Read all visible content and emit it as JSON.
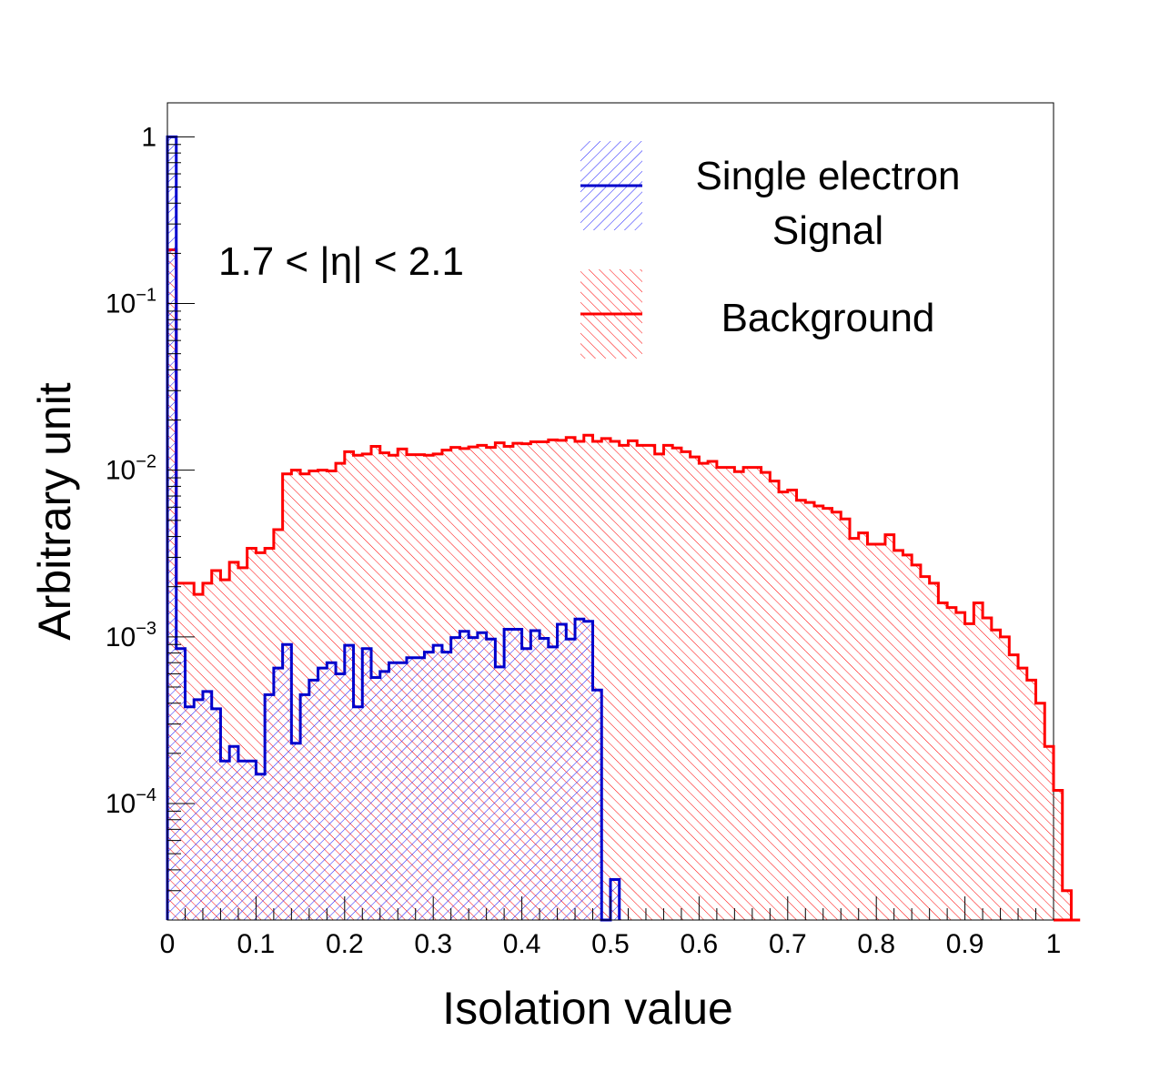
{
  "chart_data": {
    "type": "histogram",
    "xlabel": "Isolation value",
    "ylabel": "Arbitrary unit",
    "annotation": "1.7 < |η| < 2.1",
    "xlim": [
      0,
      1
    ],
    "ylim": [
      2e-05,
      1.6
    ],
    "yscale": "log",
    "bin_width": 0.01,
    "x_ticks": [
      "0",
      "0.1",
      "0.2",
      "0.3",
      "0.4",
      "0.5",
      "0.6",
      "0.7",
      "0.8",
      "0.9",
      "1"
    ],
    "y_ticks": [
      {
        "value": 1,
        "base": "1",
        "exp": ""
      },
      {
        "value": 0.1,
        "base": "10",
        "exp": "−1"
      },
      {
        "value": 0.01,
        "base": "10",
        "exp": "−2"
      },
      {
        "value": 0.001,
        "base": "10",
        "exp": "−3"
      },
      {
        "value": 0.0001,
        "base": "10",
        "exp": "−4"
      }
    ],
    "legend_position": "top-right",
    "series": [
      {
        "name": "Background",
        "legend_label": "Background",
        "color": "#ff0000",
        "hatch": "diagonal-down",
        "values": [
          0.21,
          0.0021,
          0.0021,
          0.0018,
          0.0021,
          0.0025,
          0.0022,
          0.0028,
          0.0026,
          0.0034,
          0.0032,
          0.0034,
          0.0044,
          0.0095,
          0.01,
          0.0095,
          0.0099,
          0.01,
          0.0099,
          0.011,
          0.0129,
          0.0123,
          0.0125,
          0.0139,
          0.0127,
          0.0123,
          0.0134,
          0.0124,
          0.0124,
          0.0123,
          0.0125,
          0.0132,
          0.0137,
          0.0135,
          0.0138,
          0.0141,
          0.0137,
          0.0146,
          0.0139,
          0.0145,
          0.0144,
          0.0148,
          0.0148,
          0.0152,
          0.0151,
          0.0157,
          0.0149,
          0.0162,
          0.0149,
          0.0155,
          0.0149,
          0.0141,
          0.015,
          0.0141,
          0.0141,
          0.0125,
          0.0141,
          0.0136,
          0.0129,
          0.012,
          0.011,
          0.0113,
          0.0104,
          0.0104,
          0.0098,
          0.0104,
          0.0104,
          0.0097,
          0.0086,
          0.0074,
          0.0076,
          0.0066,
          0.0064,
          0.0061,
          0.0059,
          0.0056,
          0.0051,
          0.0039,
          0.0042,
          0.0036,
          0.0036,
          0.0041,
          0.0033,
          0.0031,
          0.0027,
          0.0023,
          0.0021,
          0.0016,
          0.0015,
          0.0014,
          0.0012,
          0.0016,
          0.0013,
          0.0011,
          0.001,
          0.00078,
          0.00065,
          0.00055,
          0.0004,
          0.00022,
          0.00012,
          3e-05,
          2e-05
        ]
      },
      {
        "name": "Single electron Signal",
        "legend_label": "Single electron Signal",
        "color": "#0000cc",
        "hatch": "diagonal-up",
        "values": [
          1.0,
          0.00085,
          0.00038,
          0.00042,
          0.00047,
          0.00037,
          0.00018,
          0.00022,
          0.00018,
          0.00018,
          0.00015,
          0.00045,
          0.00065,
          0.0009,
          0.00023,
          0.00045,
          0.00055,
          0.00065,
          0.0007,
          0.0006,
          0.00089,
          0.00038,
          0.00085,
          0.00057,
          0.00062,
          0.0007,
          0.0007,
          0.00075,
          0.00075,
          0.00081,
          0.00089,
          0.00081,
          0.00099,
          0.00108,
          0.00099,
          0.00106,
          0.00097,
          0.00066,
          0.00111,
          0.00111,
          0.00085,
          0.00109,
          0.00098,
          0.00087,
          0.00119,
          0.00097,
          0.00128,
          0.00124,
          0.00048,
          2e-05,
          3.5e-05
        ]
      }
    ]
  }
}
